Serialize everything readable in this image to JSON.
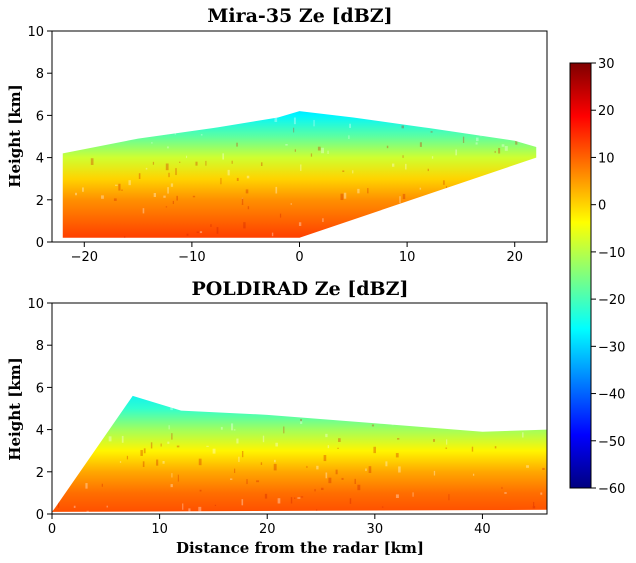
{
  "colors": {
    "colormap": [
      "#00007f",
      "#0000ff",
      "#007fff",
      "#00ffff",
      "#7fff7f",
      "#ffff00",
      "#ff7f00",
      "#ff0000",
      "#7f0000"
    ]
  },
  "chart_data": [
    {
      "type": "heatmap",
      "title": "Mira-35 Ze [dBZ]",
      "xlabel": "",
      "ylabel": "Height [km]",
      "xlim": [
        -23,
        23
      ],
      "ylim": [
        0,
        10
      ],
      "xticks": [
        -20,
        -10,
        0,
        10,
        20
      ],
      "xtick_labels": [
        "−20",
        "−10",
        "0",
        "10",
        "20"
      ],
      "yticks": [
        0,
        2,
        4,
        6,
        8,
        10
      ],
      "ytick_labels": [
        "0",
        "2",
        "4",
        "6",
        "8",
        "10"
      ],
      "grid": false,
      "colorscale": "jet",
      "clim": [
        -60,
        30
      ],
      "echo_x_range": [
        -22,
        22
      ],
      "echo_top_profile": [
        [
          -22,
          4.2
        ],
        [
          -15,
          4.9
        ],
        [
          -8,
          5.4
        ],
        [
          -2,
          5.9
        ],
        [
          0,
          6.2
        ],
        [
          5,
          5.9
        ],
        [
          12,
          5.4
        ],
        [
          20,
          4.8
        ],
        [
          22,
          4.5
        ]
      ],
      "echo_bottom_profile": [
        [
          -22,
          0.2
        ],
        [
          0,
          0.2
        ],
        [
          22,
          4.0
        ]
      ],
      "ze_profile": [
        [
          0,
          14
        ],
        [
          1,
          10
        ],
        [
          2,
          6
        ],
        [
          3,
          0
        ],
        [
          4,
          -8
        ],
        [
          5,
          -18
        ],
        [
          6,
          -27
        ],
        [
          7,
          -32
        ]
      ]
    },
    {
      "type": "heatmap",
      "title": "POLDIRAD Ze [dBZ]",
      "xlabel": "Distance from the radar [km]",
      "ylabel": "Height [km]",
      "xlim": [
        0,
        46
      ],
      "ylim": [
        0,
        10
      ],
      "xticks": [
        0,
        10,
        20,
        30,
        40
      ],
      "xtick_labels": [
        "0",
        "10",
        "20",
        "30",
        "40"
      ],
      "yticks": [
        0,
        2,
        4,
        6,
        8,
        10
      ],
      "ytick_labels": [
        "0",
        "2",
        "4",
        "6",
        "8",
        "10"
      ],
      "grid": false,
      "colorscale": "jet",
      "clim": [
        -60,
        30
      ],
      "echo_x_range": [
        0,
        46
      ],
      "echo_top_profile": [
        [
          0.3,
          0.3
        ],
        [
          7.5,
          5.6
        ],
        [
          12,
          4.9
        ],
        [
          20,
          4.7
        ],
        [
          30,
          4.3
        ],
        [
          40,
          3.9
        ],
        [
          46,
          4.0
        ]
      ],
      "echo_bottom_profile": [
        [
          0,
          0.1
        ],
        [
          46,
          0.2
        ]
      ],
      "ze_profile": [
        [
          0,
          12
        ],
        [
          1,
          9
        ],
        [
          2,
          4
        ],
        [
          3,
          -3
        ],
        [
          4,
          -12
        ],
        [
          5,
          -22
        ],
        [
          6,
          -28
        ]
      ]
    }
  ],
  "colorbar": {
    "ticks": [
      30,
      20,
      10,
      0,
      -10,
      -20,
      -30,
      -40,
      -50,
      -60
    ],
    "tick_labels": [
      "30",
      "20",
      "10",
      "0",
      "−10",
      "−20",
      "−30",
      "−40",
      "−50",
      "−60"
    ],
    "range": [
      -60,
      30
    ]
  }
}
